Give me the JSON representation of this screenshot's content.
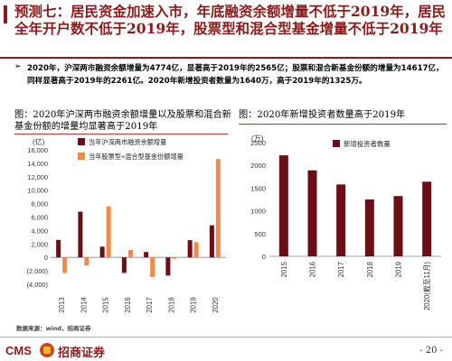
{
  "slide": {
    "title": "预测七：居民资金加速入市，年底融资余额增量不低于2019年，居民全年开户数不低于2019年，股票型和混合型基金增量不低于2019年",
    "bullet": "2020年，沪深两市融资余额增量为4774亿，显著高于2019年的2565亿；股票和混合新基金份额的增量为14617亿，同样显著高于2019年的2261亿。2020年新增投资者数量为1640万，高于2019年的1325万。",
    "bullet_arrow": "➢",
    "source": "数据来源：wind，招商证券",
    "page_number": "- 20 -"
  },
  "logo": {
    "cms": "CMS",
    "name": "招商证券"
  },
  "colors": {
    "brand": "#8b1a1a",
    "series_dark": "#6b0f14",
    "series_orange": "#f0894a"
  },
  "figures": {
    "left_title": "图：2020年沪深两市融资余额增量以及股票和混合新基金份额的增量均显著高于2019年",
    "right_title": "图：2020年新增投资者数量高于2019年"
  },
  "chart_data": [
    {
      "type": "bar",
      "unit_label": "(亿)",
      "categories": [
        "2013",
        "2014",
        "2015",
        "2016",
        "2017",
        "2018",
        "2019",
        "2020"
      ],
      "series": [
        {
          "name": "当年沪深两市融资余额增量",
          "values": [
            2600,
            6800,
            1600,
            -2300,
            800,
            -2700,
            2565,
            4774
          ]
        },
        {
          "name": "当年股票型+混合型基金份额增量",
          "values": [
            -2300,
            -1200,
            7600,
            1100,
            -2900,
            -200,
            2261,
            14617
          ]
        }
      ],
      "yticks": [
        "16,000",
        "14,000",
        "12,000",
        "10,000",
        "8,000",
        "6,000",
        "4,000",
        "2,000",
        "0",
        "(2,000)",
        "(4,000)"
      ],
      "ylim": [
        -4000,
        16000
      ]
    },
    {
      "type": "bar",
      "unit_label": "(万)",
      "categories": [
        "2015",
        "2016",
        "2017",
        "2018",
        "2019",
        "2020(截至11月)"
      ],
      "series": [
        {
          "name": "新增投资者数量",
          "values": [
            2220,
            1890,
            1580,
            1250,
            1325,
            1640
          ]
        }
      ],
      "yticks": [
        "2500",
        "2000",
        "1500",
        "1000",
        "500",
        "0"
      ],
      "ylim": [
        0,
        2500
      ]
    }
  ]
}
